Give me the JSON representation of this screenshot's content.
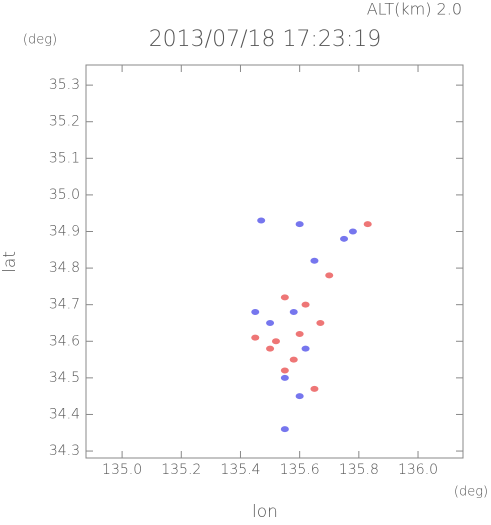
{
  "chart_data": {
    "type": "scatter",
    "title": "2013/07/18 17:23:19",
    "subtitle": "ALT(km) 2.0",
    "y_unit": "(deg)",
    "x_unit": "(deg)",
    "xlabel": "lon",
    "ylabel": "lat",
    "xlim": [
      134.878,
      136.152
    ],
    "ylim": [
      34.281,
      35.355
    ],
    "xticks": [
      {
        "value": 135,
        "label": "135.0"
      },
      135.2,
      135.4,
      135.6,
      135.8,
      {
        "value": 136,
        "label": "136.0"
      }
    ],
    "yticks": [
      34.3,
      34.4,
      34.5,
      34.6,
      34.7,
      34.8,
      34.9,
      {
        "value": 35,
        "label": "35.0"
      },
      35.1,
      35.2,
      35.3
    ],
    "series": [
      {
        "color": "#e84848",
        "x": [
          135.83,
          135.55,
          135.6,
          135.55,
          135.65,
          135.52,
          135.67,
          135.5,
          135.7,
          135.45,
          135.58,
          135.62
        ],
        "values": [
          34.92,
          34.72,
          34.62,
          34.52,
          34.47,
          34.6,
          34.65,
          34.58,
          34.78,
          34.61,
          34.55,
          34.7
        ]
      },
      {
        "color": "#4848e8",
        "x": [
          135.47,
          135.6,
          135.58,
          135.45,
          135.5,
          135.55,
          135.62,
          135.75,
          135.78,
          135.65,
          135.55,
          135.6
        ],
        "values": [
          34.93,
          34.92,
          34.68,
          34.68,
          34.65,
          34.5,
          34.58,
          34.88,
          34.9,
          34.82,
          34.36,
          34.45
        ]
      }
    ]
  }
}
